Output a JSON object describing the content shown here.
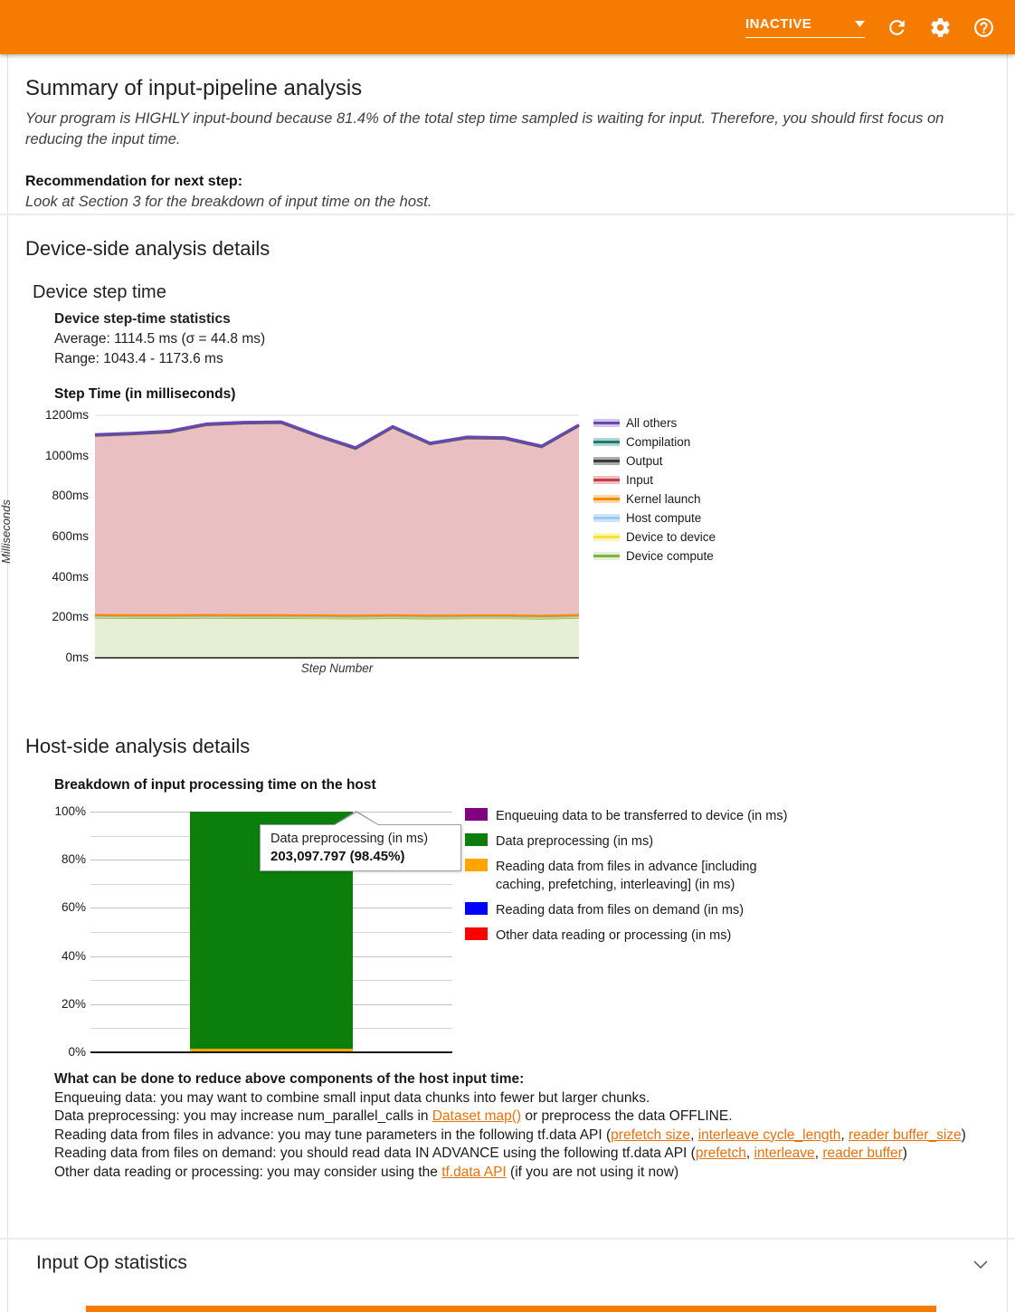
{
  "header": {
    "status": "INACTIVE",
    "icons": [
      "caret-down-icon",
      "refresh-icon",
      "settings-icon",
      "help-icon"
    ]
  },
  "summary": {
    "title": "Summary of input-pipeline analysis",
    "body": "Your program is HIGHLY input-bound because 81.4% of the total step time sampled is waiting for input. Therefore, you should first focus on reducing the input time.",
    "recommendation_label": "Recommendation for next step:",
    "recommendation": "Look at Section 3 for the breakdown of input time on the host."
  },
  "device_side": {
    "title": "Device-side analysis details",
    "subtitle": "Device step time",
    "stats_title": "Device step-time statistics",
    "average": "Average: 1114.5 ms (σ = 44.8 ms)",
    "range": "Range: 1043.4 - 1173.6 ms"
  },
  "host_side": {
    "title": "Host-side analysis details",
    "advice": [
      [
        {
          "t": "What can be done to reduce above components of the host input time:",
          "bold": true
        }
      ],
      [
        {
          "t": "Enqueuing data: you may want to combine small input data chunks into fewer but larger chunks."
        }
      ],
      [
        {
          "t": "Data preprocessing: you may increase num_parallel_calls in "
        },
        {
          "t": "Dataset map()",
          "link": true
        },
        {
          "t": " or preprocess the data OFFLINE."
        }
      ],
      [
        {
          "t": "Reading data from files in advance: you may tune parameters in the following tf.data API ("
        },
        {
          "t": "prefetch size",
          "link": true
        },
        {
          "t": ", "
        },
        {
          "t": "interleave cycle_length",
          "link": true
        },
        {
          "t": ", "
        },
        {
          "t": "reader buffer_size",
          "link": true
        },
        {
          "t": ")"
        }
      ],
      [
        {
          "t": "Reading data from files on demand: you should read data IN ADVANCE using the following tf.data API ("
        },
        {
          "t": "prefetch",
          "link": true
        },
        {
          "t": ", "
        },
        {
          "t": "interleave",
          "link": true
        },
        {
          "t": ", "
        },
        {
          "t": "reader buffer",
          "link": true
        },
        {
          "t": ")"
        }
      ],
      [
        {
          "t": "Other data reading or processing: you may consider using the "
        },
        {
          "t": "tf.data API",
          "link": true
        },
        {
          "t": " (if you are not using it now)"
        }
      ]
    ]
  },
  "input_op": {
    "title": "Input Op statistics"
  },
  "chart_data": [
    {
      "type": "area",
      "stacked": true,
      "title": "Step Time (in milliseconds)",
      "xlabel": "Step Number",
      "ylabel": "Milliseconds",
      "ylim": [
        0,
        1200
      ],
      "ytick_values": [
        0,
        200,
        400,
        600,
        800,
        1000,
        1200
      ],
      "ytick_labels": [
        "0ms",
        "200ms",
        "400ms",
        "600ms",
        "800ms",
        "1000ms",
        "1200ms"
      ],
      "x": [
        1,
        2,
        3,
        4,
        5,
        6,
        7,
        8,
        9,
        10,
        11,
        12,
        13,
        14
      ],
      "totals": [
        1105,
        1112,
        1122,
        1158,
        1166,
        1168,
        1100,
        1040,
        1145,
        1063,
        1093,
        1090,
        1048,
        1153
      ],
      "series": [
        {
          "name": "Device compute",
          "line": "#7CB342",
          "fill": "#E4EFD6",
          "sw": 1.5,
          "values": [
            197,
            196,
            196,
            197,
            196,
            196,
            195,
            194,
            196,
            194,
            195,
            195,
            193,
            197
          ]
        },
        {
          "name": "Device to device",
          "line": "#F5E13D",
          "fill": "#FCF7B6",
          "sw": 2,
          "values": [
            4,
            4,
            4,
            4,
            4,
            4,
            4,
            4,
            4,
            4,
            4,
            4,
            4,
            4
          ]
        },
        {
          "name": "Host compute",
          "line": "#9CC8F0",
          "fill": "#CEE4F8",
          "sw": 1.5,
          "values": [
            2,
            2,
            2,
            2,
            2,
            2,
            2,
            2,
            2,
            2,
            2,
            2,
            2,
            2
          ]
        },
        {
          "name": "Kernel launch",
          "line": "#F08C00",
          "fill": "#FAD9A6",
          "sw": 2.5,
          "values": [
            8,
            8,
            8,
            8,
            8,
            8,
            8,
            8,
            8,
            8,
            8,
            8,
            8,
            8
          ]
        },
        {
          "name": "Input",
          "line": "#CC3A41",
          "fill": "#E9BFC1",
          "sw": 1.5,
          "values": [
            886,
            894,
            904,
            939,
            948,
            950,
            883,
            824,
            927,
            847,
            876,
            873,
            833,
            934
          ]
        },
        {
          "name": "Output",
          "line": "#3B3B3B",
          "fill": "#ABABAB",
          "sw": 1,
          "values": [
            1,
            1,
            1,
            1,
            1,
            1,
            1,
            1,
            1,
            1,
            1,
            1,
            1,
            1
          ]
        },
        {
          "name": "Compilation",
          "line": "#1F7A70",
          "fill": "#AFD6CD",
          "sw": 2.5,
          "values": [
            3,
            3,
            3,
            3,
            3,
            3,
            3,
            3,
            3,
            3,
            3,
            3,
            3,
            3
          ]
        },
        {
          "name": "All others",
          "line": "#6A45B5",
          "fill": "#D2C5E8",
          "sw": 3,
          "values": [
            4,
            4,
            4,
            4,
            4,
            4,
            4,
            4,
            4,
            4,
            4,
            4,
            4,
            4
          ]
        }
      ],
      "legend_position": "right",
      "grid": true
    },
    {
      "type": "stacked-bar-percent",
      "title": "Breakdown of input processing time on the host",
      "ytick_values": [
        0,
        20,
        40,
        60,
        80,
        100
      ],
      "ytick_labels": [
        "0%",
        "20%",
        "40%",
        "60%",
        "80%",
        "100%"
      ],
      "minor_grid_step": 10,
      "series": [
        {
          "name": "Enqueuing data to be transferred to device (in ms)",
          "color": "#800080",
          "pct": 0.05
        },
        {
          "name": "Data preprocessing (in ms)",
          "color": "#0B7E0B",
          "pct": 98.45,
          "value_ms": 203097.797
        },
        {
          "name": "Reading data from files in advance [including caching, prefetching, interleaving] (in ms)",
          "color": "#FFA500",
          "pct": 1.45
        },
        {
          "name": "Reading data from files on demand (in ms)",
          "color": "#0000FF",
          "pct": 0.03
        },
        {
          "name": "Other data reading or processing (in ms)",
          "color": "#FF0000",
          "pct": 0.02
        }
      ],
      "tooltip": {
        "label": "Data preprocessing (in ms)",
        "value": "203,097.797 (98.45%)"
      },
      "grid": true,
      "legend_position": "right"
    }
  ]
}
